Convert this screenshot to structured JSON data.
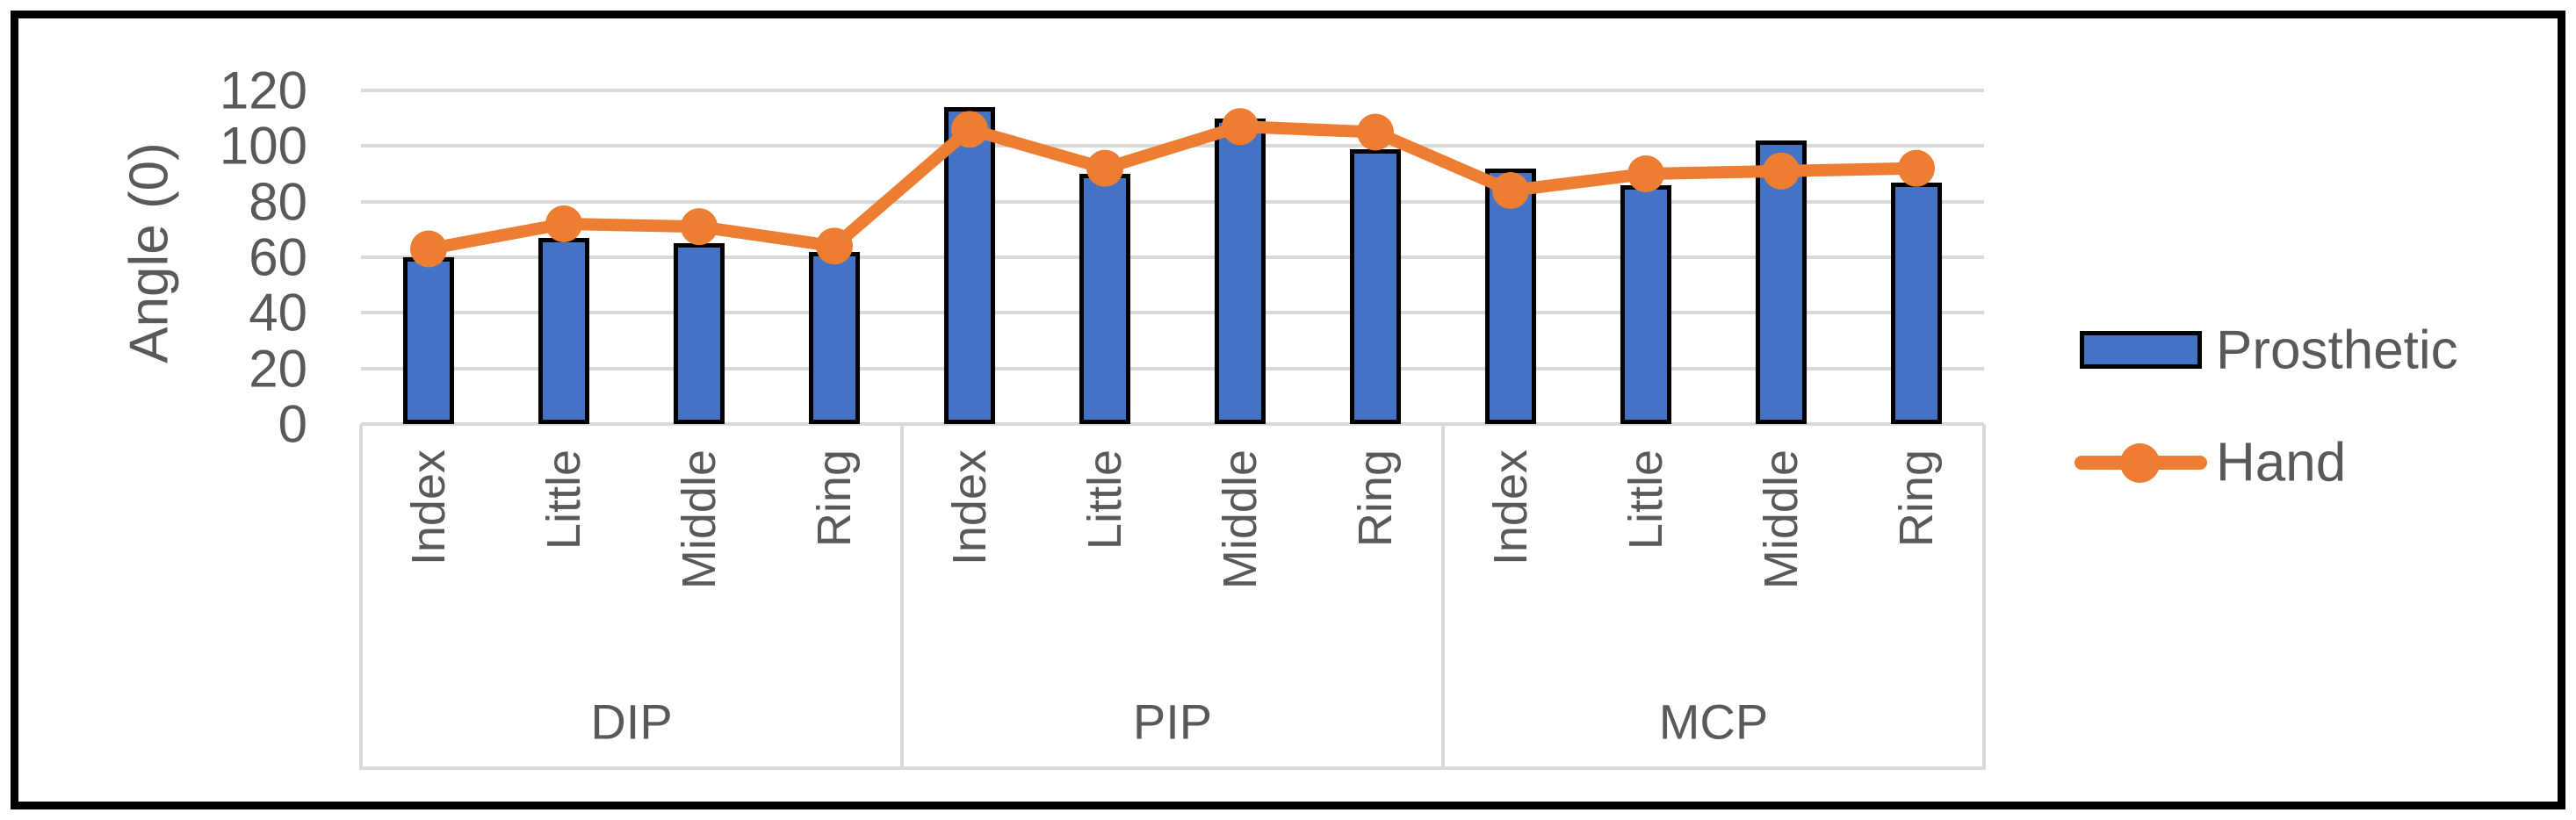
{
  "chart_data": {
    "type": "combo-bar-line",
    "title": "",
    "ylabel": "Angle (0)",
    "ylim": [
      0,
      120
    ],
    "yticks": [
      0,
      20,
      40,
      60,
      80,
      100,
      120
    ],
    "grid": "horizontal",
    "legend_position": "right",
    "axis_text_color": "#595959",
    "gridline_color": "#D9D9D9",
    "plot_background": "#FFFFFF",
    "outer_border_color": "#000000",
    "group_labels": [
      "DIP",
      "PIP",
      "MCP"
    ],
    "categories": [
      "Index",
      "Little",
      "Middle",
      "Ring",
      "Index",
      "Little",
      "Middle",
      "Ring",
      "Index",
      "Little",
      "Middle",
      "Ring"
    ],
    "series": [
      {
        "name": "Prosthetic",
        "type": "bar",
        "color": "#4472C4",
        "border_color": "#000000",
        "values": [
          60,
          67,
          65,
          62,
          114,
          90,
          110,
          99,
          92,
          86,
          102,
          87
        ]
      },
      {
        "name": "Hand",
        "type": "line",
        "color": "#ED7D31",
        "values": [
          63,
          72,
          71,
          64,
          106,
          92,
          107,
          105,
          84,
          90,
          91,
          92
        ]
      }
    ]
  }
}
